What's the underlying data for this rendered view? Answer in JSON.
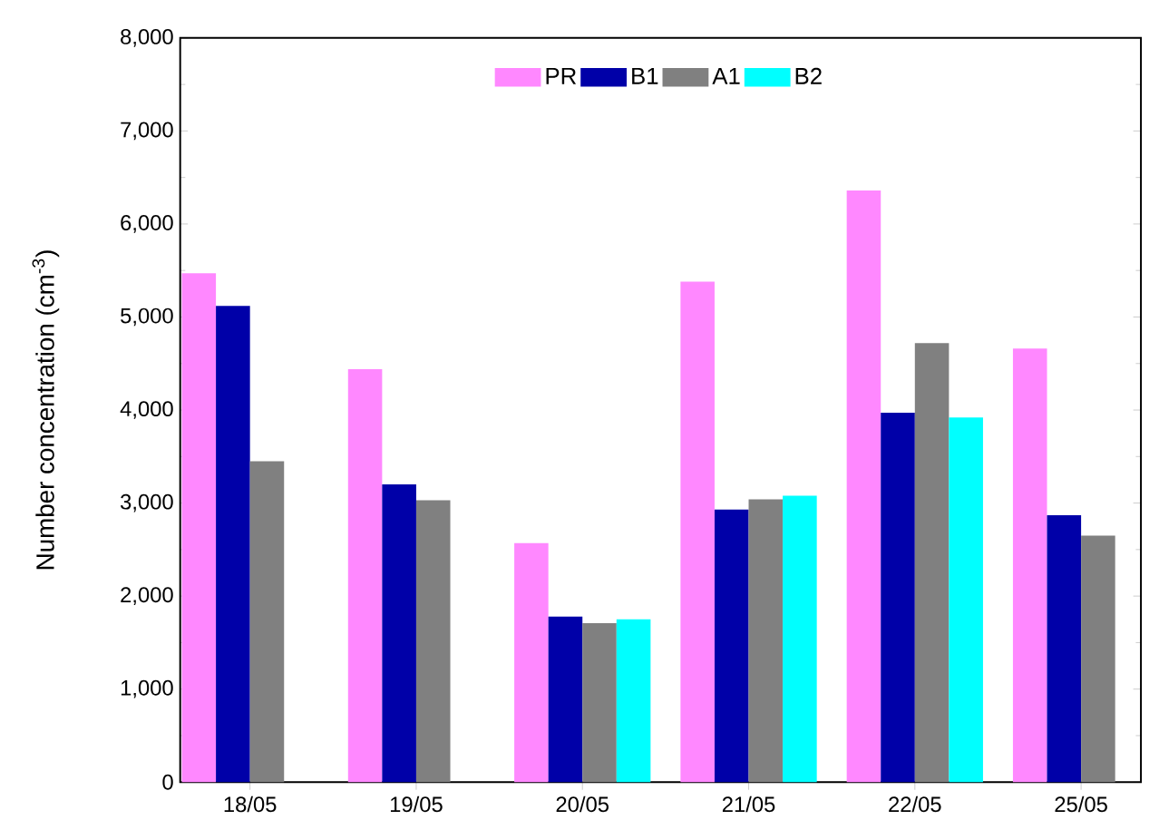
{
  "chart_data": {
    "type": "bar",
    "categories": [
      "18/05",
      "19/05",
      "20/05",
      "21/05",
      "22/05",
      "25/05"
    ],
    "ylabel": "Number concentration (cm$^{-3}$)",
    "series": [
      {
        "name": "PR",
        "color": "#ff88ff",
        "values": [
          5470,
          4440,
          2570,
          5380,
          6360,
          4660
        ]
      },
      {
        "name": "B1",
        "color": "#0000a8",
        "values": [
          5120,
          3200,
          1780,
          2930,
          3970,
          2870
        ]
      },
      {
        "name": "A1",
        "color": "#808080",
        "values": [
          3450,
          3030,
          1710,
          3040,
          4720,
          2650
        ]
      },
      {
        "name": "B2",
        "color": "#00ffff",
        "values": [
          null,
          null,
          1750,
          3080,
          3920,
          null
        ]
      }
    ],
    "ylim": [
      0,
      8000
    ],
    "yticks": [
      0,
      {
        "value": 1000,
        "label": "1,000"
      },
      {
        "value": 2000,
        "label": "2,000"
      },
      {
        "value": 3000,
        "label": "3,000"
      },
      {
        "value": 4000,
        "label": "4,000"
      },
      {
        "value": 5000,
        "label": "5,000"
      },
      {
        "value": 6000,
        "label": "6,000"
      },
      {
        "value": 7000,
        "label": "7,000"
      },
      {
        "value": 8000,
        "label": "8,000"
      }
    ],
    "legend": "top",
    "grid": false
  }
}
